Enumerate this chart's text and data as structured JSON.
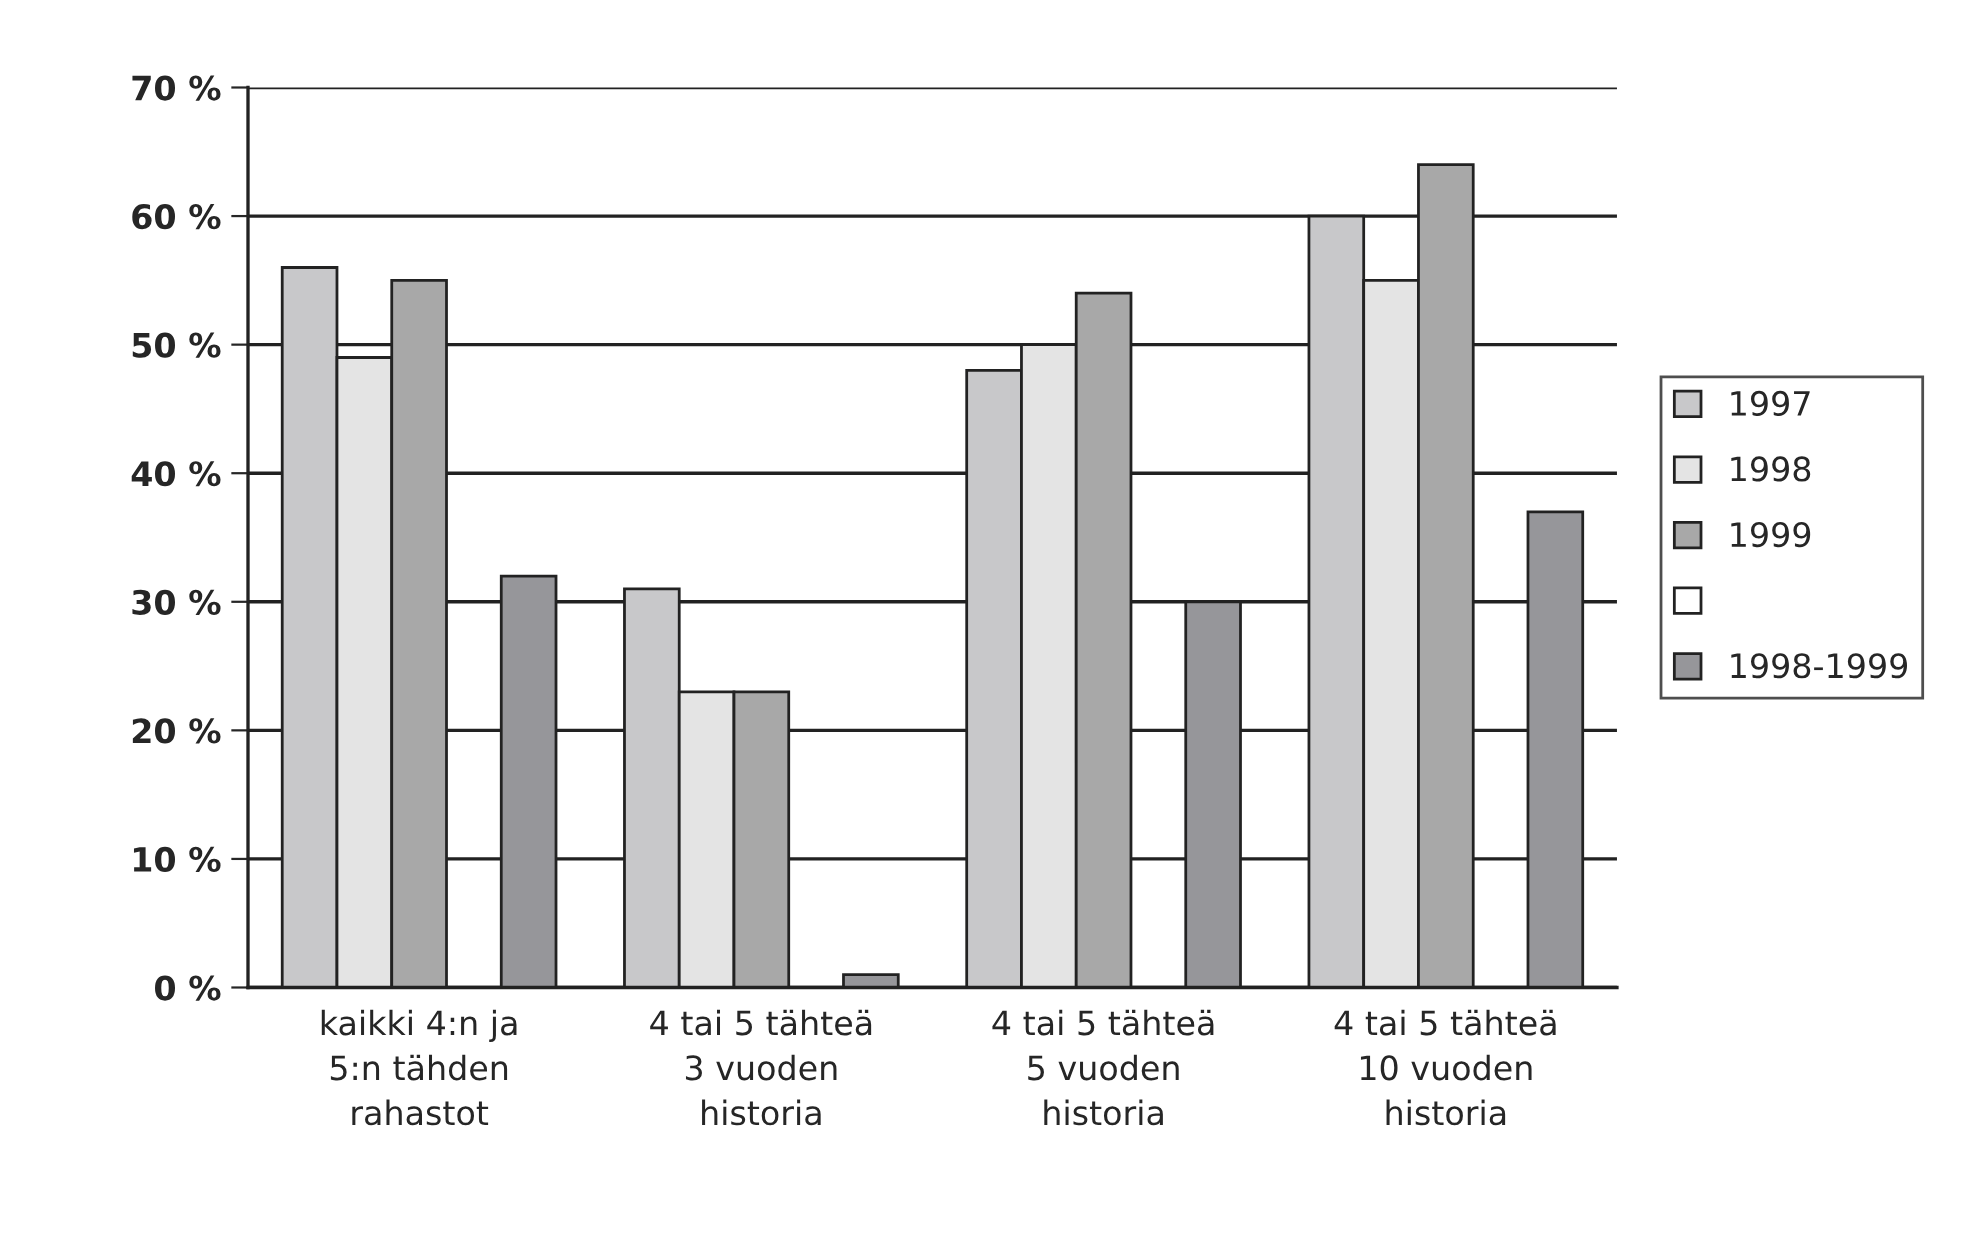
{
  "chart_data": {
    "type": "bar",
    "categories": [
      "kaikki 4:n ja\n5:n tähden\nrahastot",
      "4 tai 5 tähteä\n3 vuoden\nhistoria",
      "4 tai 5 tähteä\n5 vuoden\nhistoria",
      "4 tai 5 tähteä\n10 vuoden\nhistoria"
    ],
    "series": [
      {
        "name": "1997",
        "color": "#c8c8ca",
        "values": [
          56,
          31,
          48,
          60
        ]
      },
      {
        "name": "1998",
        "color": "#e4e4e4",
        "values": [
          49,
          23,
          50,
          55
        ]
      },
      {
        "name": "1999",
        "color": "#a8a8a8",
        "values": [
          55,
          23,
          54,
          64
        ]
      },
      {
        "color": "#ffffff",
        "values": [
          null,
          null,
          null,
          null
        ]
      },
      {
        "name": "1998-1999",
        "color": "#96969a",
        "values": [
          32,
          1,
          30,
          37
        ]
      }
    ],
    "ylim": [
      0,
      70
    ],
    "yticks": [
      {
        "value": 0,
        "label": "0 %"
      },
      {
        "value": 10,
        "label": "10 %"
      },
      {
        "value": 20,
        "label": "20 %"
      },
      {
        "value": 30,
        "label": "30 %"
      },
      {
        "value": 40,
        "label": "40 %"
      },
      {
        "value": 50,
        "label": "50 %"
      },
      {
        "value": 60,
        "label": "60 %"
      },
      {
        "value": 70,
        "label": "70 %"
      }
    ],
    "grid": "y",
    "legend": "right"
  }
}
